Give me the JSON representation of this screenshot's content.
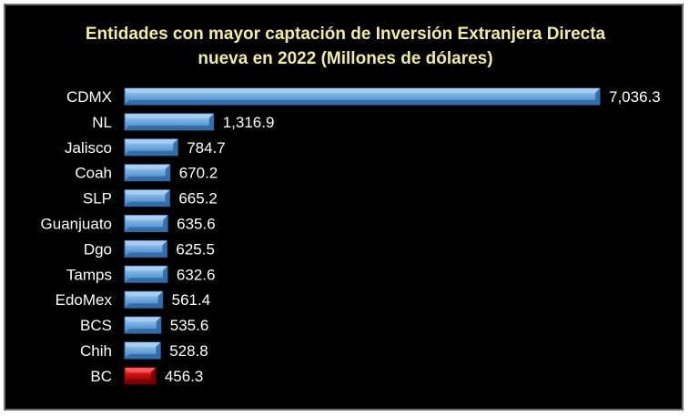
{
  "chart_data": {
    "type": "bar",
    "orientation": "horizontal",
    "title": "Entidades con mayor captación de Inversión Extranjera Directa",
    "subtitle": "nueva en 2022 (Millones de dólares)",
    "categories": [
      "CDMX",
      "NL",
      "Jalisco",
      "Coah",
      "SLP",
      "Guanjuato",
      "Dgo",
      "Tamps",
      "EdoMex",
      "BCS",
      "Chih",
      "BC"
    ],
    "values": [
      7036.3,
      1316.9,
      784.7,
      670.2,
      665.2,
      635.6,
      625.5,
      632.6,
      561.4,
      535.6,
      528.8,
      456.3
    ],
    "labels": [
      "7,036.3",
      "1,316.9",
      "784.7",
      "670.2",
      "665.2",
      "635.6",
      "625.5",
      "632.6",
      "561.4",
      "535.6",
      "528.8",
      "456.3"
    ],
    "highlight_category": "BC",
    "xlim": [
      0,
      7036.3
    ],
    "grid": false,
    "legend": "none",
    "colors": {
      "background": "#000000",
      "title": "#f2eca0",
      "text": "#ffffff",
      "bar": "#5b9bd5",
      "bar_light": "#a9cdf0",
      "bar_dark": "#2f6aa6",
      "highlight": "#c00000",
      "highlight_light": "#ff5a5a",
      "highlight_dark": "#7a0000"
    }
  }
}
